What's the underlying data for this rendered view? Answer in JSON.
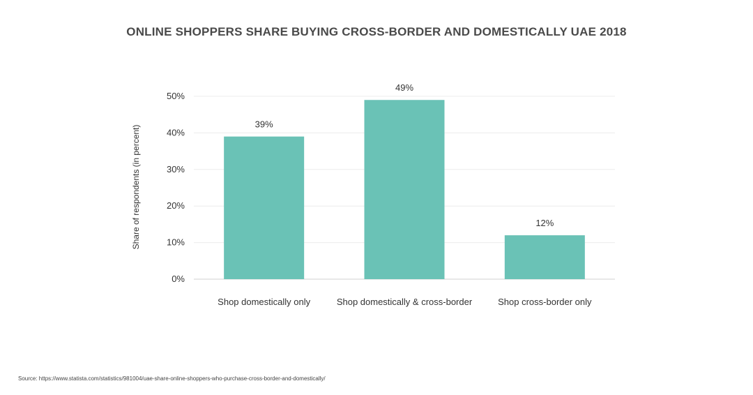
{
  "chart_data": {
    "type": "bar",
    "title": "ONLINE SHOPPERS SHARE BUYING CROSS-BORDER AND DOMESTICALLY UAE 2018",
    "ylabel": "Share of respondents (in percent)",
    "xlabel": "",
    "categories": [
      "Shop domestically only",
      "Shop domestically & cross-border",
      "Shop cross-border only"
    ],
    "values": [
      39,
      49,
      12
    ],
    "value_labels": [
      "39%",
      "49%",
      "12%"
    ],
    "yticks": [
      0,
      10,
      20,
      30,
      40,
      50
    ],
    "ytick_labels": [
      "0%",
      "10%",
      "20%",
      "30%",
      "40%",
      "50%"
    ],
    "ylim": [
      0,
      50
    ],
    "grid": true,
    "bar_color": "#6ac2b6"
  },
  "source": "Source: https://www.statista.com/statistics/981004/uae-share-online-shoppers-who-purchase-cross-border-and-domestically/"
}
